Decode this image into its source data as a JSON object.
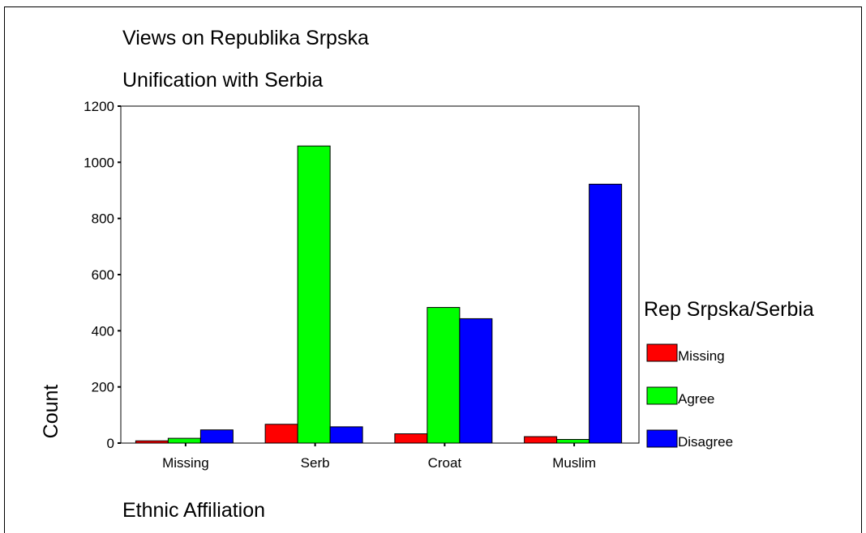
{
  "chart_data": {
    "type": "bar",
    "title": "Views on Republika Srpska",
    "subtitle": "Unification with Serbia",
    "xlabel": "Ethnic Affiliation",
    "ylabel": "Count",
    "categories": [
      "Missing",
      "Serb",
      "Croat",
      "Muslim"
    ],
    "series": [
      {
        "name": "Missing",
        "color": "#ff0000",
        "values": [
          8,
          67,
          33,
          23
        ]
      },
      {
        "name": "Agree",
        "color": "#00ff00",
        "values": [
          17,
          1058,
          483,
          13
        ]
      },
      {
        "name": "Disagree",
        "color": "#0000ff",
        "values": [
          47,
          58,
          443,
          922
        ]
      }
    ],
    "ylim": [
      0,
      1200
    ],
    "yticks": [
      0,
      200,
      400,
      600,
      800,
      1000,
      1200
    ],
    "grid": false,
    "legend": {
      "title": "Rep Srpska/Serbia",
      "placement": "right"
    }
  }
}
